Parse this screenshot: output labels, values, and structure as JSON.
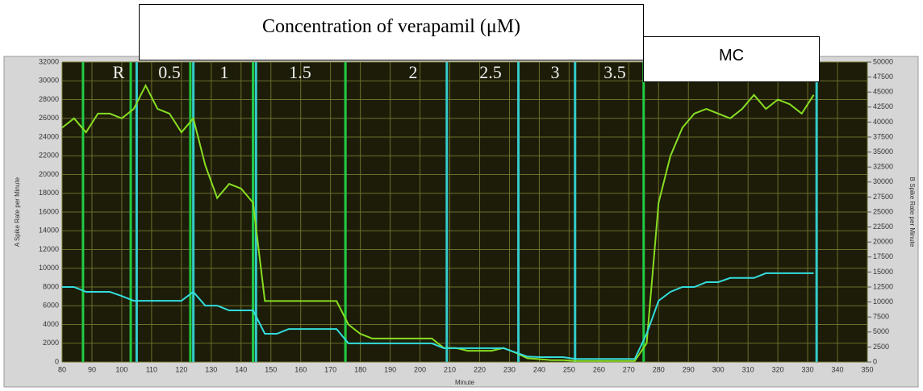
{
  "header": {
    "title": "Concentration of verapamil (μM)",
    "end_label": "MC"
  },
  "chart_data": {
    "type": "line",
    "ylabel": "A Spike Rate per Minute",
    "y2label": "B Spike Rate per Minute",
    "xlabel": "Minute",
    "xlim": [
      80,
      350
    ],
    "xticks": [
      80,
      90,
      100,
      110,
      120,
      130,
      140,
      150,
      160,
      170,
      180,
      190,
      200,
      210,
      220,
      230,
      240,
      250,
      260,
      270,
      280,
      290,
      300,
      310,
      320,
      330,
      340,
      350
    ],
    "ylim": [
      0,
      32000
    ],
    "yticks": [
      0,
      2000,
      4000,
      6000,
      8000,
      10000,
      12000,
      14000,
      16000,
      18000,
      20000,
      22000,
      24000,
      26000,
      28000,
      30000,
      32000
    ],
    "y2lim": [
      0,
      50000
    ],
    "y2ticks": [
      0,
      2500,
      5000,
      7500,
      10000,
      12500,
      15000,
      17500,
      20000,
      22500,
      25000,
      27500,
      30000,
      32500,
      35000,
      37500,
      40000,
      42500,
      45000,
      47500,
      50000
    ],
    "grid": true,
    "region_labels": [
      "R",
      "0.5",
      "1",
      "1.5",
      "2",
      "2.5",
      "3",
      "3.5"
    ],
    "vlines": [
      {
        "x": 87,
        "color": "#22cc44"
      },
      {
        "x": 103,
        "color": "#22cc44"
      },
      {
        "x": 105,
        "color": "#33cccc"
      },
      {
        "x": 123,
        "color": "#22cc44"
      },
      {
        "x": 124,
        "color": "#33cccc"
      },
      {
        "x": 144,
        "color": "#22cc44"
      },
      {
        "x": 145,
        "color": "#33cccc"
      },
      {
        "x": 175,
        "color": "#22cc44"
      },
      {
        "x": 209,
        "color": "#33cccc"
      },
      {
        "x": 233,
        "color": "#33cccc"
      },
      {
        "x": 252,
        "color": "#33cccc"
      },
      {
        "x": 275,
        "color": "#22cc44"
      },
      {
        "x": 333,
        "color": "#33cccc"
      }
    ],
    "x": [
      80,
      84,
      88,
      92,
      96,
      100,
      104,
      108,
      112,
      116,
      120,
      124,
      128,
      132,
      136,
      140,
      144,
      148,
      152,
      156,
      160,
      164,
      168,
      172,
      176,
      180,
      184,
      188,
      192,
      196,
      200,
      204,
      208,
      212,
      216,
      220,
      224,
      228,
      232,
      236,
      240,
      244,
      248,
      252,
      256,
      260,
      264,
      268,
      272,
      276,
      280,
      284,
      288,
      292,
      296,
      300,
      304,
      308,
      312,
      316,
      320,
      324,
      328,
      332
    ],
    "series": [
      {
        "color": "#88dd22",
        "values": [
          25000,
          26000,
          24500,
          26500,
          26500,
          26000,
          27000,
          29500,
          27000,
          26500,
          24500,
          26000,
          21000,
          17500,
          19000,
          18500,
          17000,
          6500,
          6500,
          6500,
          6500,
          6500,
          6500,
          6500,
          4000,
          3000,
          2500,
          2500,
          2500,
          2500,
          2500,
          2500,
          1500,
          1500,
          1200,
          1200,
          1200,
          1500,
          1000,
          400,
          300,
          200,
          200,
          100,
          100,
          100,
          100,
          100,
          100,
          2000,
          17000,
          22000,
          25000,
          26500,
          27000,
          26500,
          26000,
          27000,
          28500,
          27000,
          28000,
          27500,
          26500,
          28500
        ]
      },
      {
        "color": "#33dddd",
        "axis": "y2",
        "values": [
          12500,
          12500,
          11700,
          11700,
          11700,
          11000,
          10200,
          10200,
          10200,
          10200,
          10200,
          11700,
          9400,
          9400,
          8600,
          8600,
          8600,
          4700,
          4700,
          5500,
          5500,
          5500,
          5500,
          5500,
          3100,
          3100,
          3100,
          3100,
          3100,
          3100,
          3100,
          3100,
          2300,
          2300,
          2300,
          2300,
          2300,
          2300,
          1600,
          900,
          800,
          800,
          800,
          500,
          500,
          500,
          500,
          500,
          500,
          4700,
          10200,
          11700,
          12500,
          12500,
          13300,
          13300,
          14000,
          14000,
          14000,
          14800,
          14800,
          14800,
          14800,
          14800
        ]
      }
    ]
  }
}
